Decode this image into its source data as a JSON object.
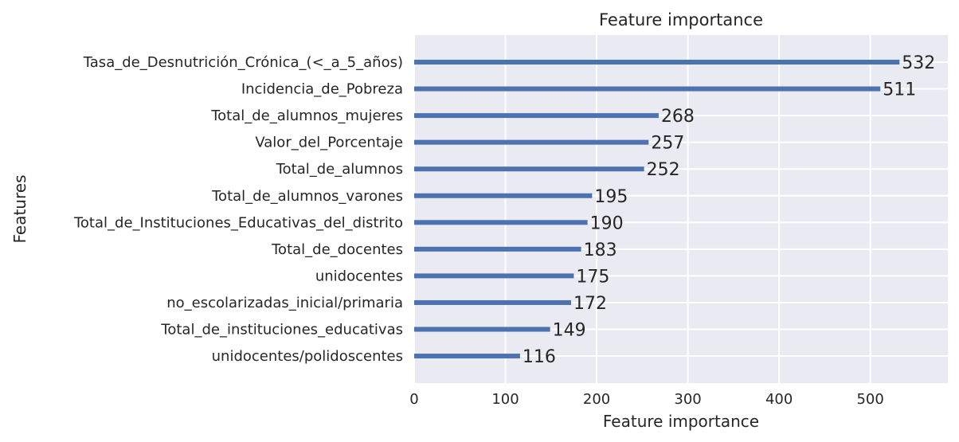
{
  "chart_data": {
    "type": "bar",
    "orientation": "horizontal",
    "title": "Feature importance",
    "xlabel": "Feature importance",
    "ylabel": "Features",
    "xlim": [
      0,
      585
    ],
    "xticks": [
      0,
      100,
      200,
      300,
      400,
      500
    ],
    "grid": true,
    "categories": [
      "Tasa_de_Desnutrición_Crónica_(<_a_5_años)",
      "Incidencia_de_Pobreza",
      "Total_de_alumnos_mujeres",
      "Valor_del_Porcentaje",
      "Total_de_alumnos",
      "Total_de_alumnos_varones",
      "Total_de_Instituciones_Educativas_del_distrito",
      "Total_de_docentes",
      "unidocentes",
      "no_escolarizadas_inicial/primaria",
      "Total_de_instituciones_educativas",
      "unidocentes/polidoscentes"
    ],
    "values": [
      532,
      511,
      268,
      257,
      252,
      195,
      190,
      183,
      175,
      172,
      149,
      116
    ],
    "colors": {
      "bar": "#4c72b0",
      "plot_background": "#eaeaf2",
      "grid": "#ffffff",
      "text": "#262626"
    }
  }
}
